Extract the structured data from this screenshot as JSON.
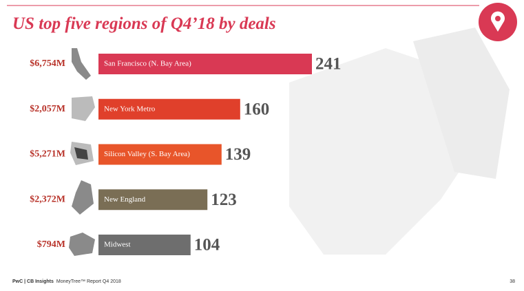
{
  "chart_data": {
    "type": "bar",
    "orientation": "horizontal",
    "title": "US top five regions of Q4’18 by deals",
    "categories": [
      "San Francisco (N. Bay Area)",
      "New York Metro",
      "Silicon Valley (S. Bay Area)",
      "New England",
      "Midwest"
    ],
    "values": [
      241,
      160,
      139,
      123,
      104
    ],
    "amounts": [
      "$6,754M",
      "$2,057M",
      "$5,271M",
      "$2,372M",
      "$794M"
    ],
    "colors": [
      "#d93954",
      "#e0402b",
      "#e8552a",
      "#7a6e55",
      "#6e6e6e"
    ]
  },
  "footer": {
    "source_bold": "PwC | CB Insights",
    "source": "MoneyTree™ Report Q4 2018",
    "page": "38"
  }
}
